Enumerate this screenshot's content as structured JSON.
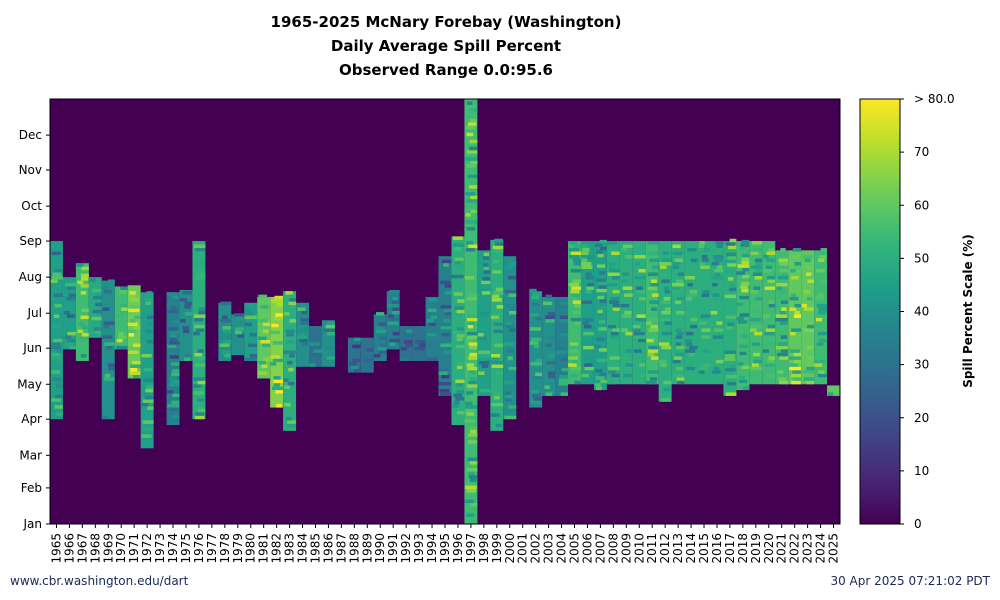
{
  "chart_data": {
    "type": "heatmap",
    "title": [
      "1965-2025 McNary Forebay (Washington)",
      "Daily Average Spill Percent",
      "Observed Range 0.0:95.6"
    ],
    "x_categories": [
      "1965",
      "1966",
      "1967",
      "1968",
      "1969",
      "1970",
      "1971",
      "1972",
      "1973",
      "1974",
      "1975",
      "1976",
      "1977",
      "1978",
      "1979",
      "1980",
      "1981",
      "1982",
      "1983",
      "1984",
      "1985",
      "1986",
      "1987",
      "1988",
      "1989",
      "1990",
      "1991",
      "1992",
      "1993",
      "1994",
      "1995",
      "1996",
      "1997",
      "1998",
      "1999",
      "2000",
      "2001",
      "2002",
      "2003",
      "2004",
      "2005",
      "2006",
      "2007",
      "2008",
      "2009",
      "2010",
      "2011",
      "2012",
      "2013",
      "2014",
      "2015",
      "2016",
      "2017",
      "2018",
      "2019",
      "2020",
      "2021",
      "2022",
      "2023",
      "2024",
      "2025"
    ],
    "y_tick_labels": [
      "Jan",
      "Feb",
      "Mar",
      "Apr",
      "May",
      "Jun",
      "Jul",
      "Aug",
      "Sep",
      "Oct",
      "Nov",
      "Dec"
    ],
    "y_tick_days": [
      1,
      32,
      60,
      91,
      121,
      152,
      182,
      213,
      244,
      274,
      305,
      335
    ],
    "y_range_days": [
      1,
      366
    ],
    "colorbar": {
      "label": "Spill Percent Scale (%)",
      "ticks": [
        "0",
        "10",
        "20",
        "30",
        "40",
        "50",
        "60",
        "70",
        "> 80.0"
      ],
      "tick_values": [
        0,
        10,
        20,
        30,
        40,
        50,
        60,
        70,
        80
      ],
      "range": [
        0,
        80
      ],
      "colormap": "viridis"
    },
    "cells": [
      [
        "1965",
        91,
        244,
        45
      ],
      [
        "1966",
        151,
        213,
        45
      ],
      [
        "1967",
        141,
        225,
        55
      ],
      [
        "1968",
        161,
        213,
        48
      ],
      [
        "1969",
        91,
        210,
        40
      ],
      [
        "1970",
        151,
        205,
        55
      ],
      [
        "1971",
        126,
        206,
        62
      ],
      [
        "1972",
        66,
        200,
        45
      ],
      [
        "1974",
        86,
        200,
        35
      ],
      [
        "1975",
        141,
        202,
        40
      ],
      [
        "1976",
        91,
        244,
        50
      ],
      [
        "1978",
        141,
        191,
        40
      ],
      [
        "1979",
        146,
        181,
        40
      ],
      [
        "1980",
        141,
        191,
        45
      ],
      [
        "1981",
        126,
        196,
        60
      ],
      [
        "1982",
        101,
        196,
        65
      ],
      [
        "1983",
        81,
        201,
        50
      ],
      [
        "1984",
        136,
        191,
        40
      ],
      [
        "1985",
        136,
        171,
        30
      ],
      [
        "1986",
        136,
        176,
        40
      ],
      [
        "1988",
        131,
        161,
        30
      ],
      [
        "1989",
        131,
        161,
        30
      ],
      [
        "1990",
        141,
        181,
        35
      ],
      [
        "1991",
        151,
        201,
        35
      ],
      [
        "1992",
        141,
        171,
        30
      ],
      [
        "1993",
        141,
        171,
        30
      ],
      [
        "1994",
        141,
        196,
        35
      ],
      [
        "1995",
        111,
        231,
        35
      ],
      [
        "1996",
        86,
        248,
        50
      ],
      [
        "1997",
        1,
        366,
        55
      ],
      [
        "1998",
        111,
        236,
        45
      ],
      [
        "1999",
        81,
        245,
        50
      ],
      [
        "2000",
        91,
        231,
        40
      ],
      [
        "2002",
        101,
        201,
        40
      ],
      [
        "2003",
        111,
        196,
        40
      ],
      [
        "2004",
        111,
        196,
        35
      ],
      [
        "2005",
        121,
        244,
        55
      ],
      [
        "2006",
        121,
        244,
        45
      ],
      [
        "2007",
        116,
        244,
        45
      ],
      [
        "2008",
        121,
        244,
        50
      ],
      [
        "2009",
        121,
        244,
        50
      ],
      [
        "2010",
        121,
        244,
        50
      ],
      [
        "2011",
        121,
        244,
        55
      ],
      [
        "2012",
        106,
        244,
        50
      ],
      [
        "2013",
        121,
        244,
        50
      ],
      [
        "2014",
        121,
        244,
        50
      ],
      [
        "2015",
        121,
        244,
        50
      ],
      [
        "2016",
        121,
        244,
        50
      ],
      [
        "2017",
        111,
        244,
        50
      ],
      [
        "2018",
        116,
        244,
        55
      ],
      [
        "2019",
        121,
        244,
        55
      ],
      [
        "2020",
        121,
        244,
        55
      ],
      [
        "2021",
        121,
        236,
        55
      ],
      [
        "2022",
        121,
        236,
        60
      ],
      [
        "2023",
        121,
        236,
        60
      ],
      [
        "2024",
        121,
        236,
        55
      ],
      [
        "2025",
        111,
        120,
        60
      ]
    ]
  },
  "footer": {
    "left": "www.cbr.washington.edu/dart",
    "right": "30 Apr 2025 07:21:02 PDT"
  }
}
